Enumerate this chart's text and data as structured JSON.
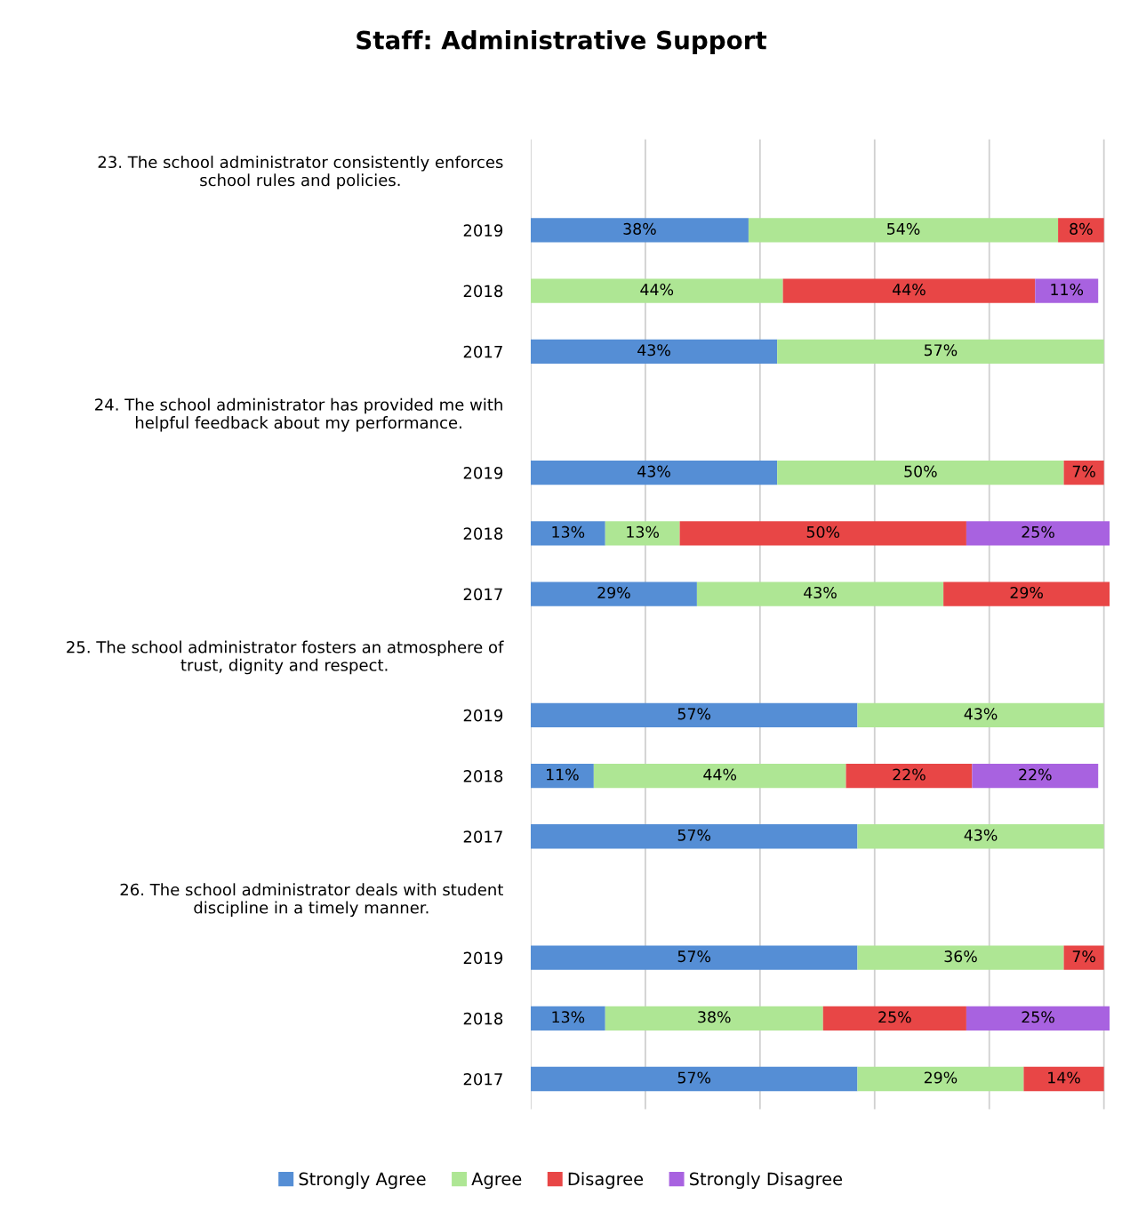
{
  "chart_data": {
    "type": "bar",
    "orientation": "horizontal",
    "stacked": true,
    "title": "Staff: Administrative Support",
    "categories": [
      "23. The school administrator consistently enforces\nschool rules and policies.",
      "2019",
      "2018",
      "2017",
      "24. The school administrator has provided me with\nhelpful feedback about my performance.",
      "2019",
      "2018",
      "2017",
      "25. The school administrator fosters an atmosphere of\ntrust, dignity and respect.",
      "2019",
      "2018",
      "2017",
      "26. The school administrator deals with student\ndiscipline in a timely manner.",
      "2019",
      "2018",
      "2017"
    ],
    "series": [
      {
        "name": "Strongly Agree",
        "color": "#558ed5",
        "values": [
          null,
          38,
          null,
          43,
          null,
          43,
          13,
          29,
          null,
          57,
          11,
          57,
          null,
          57,
          13,
          57
        ],
        "value_labels": [
          null,
          "38%",
          null,
          "43%",
          null,
          "43%",
          "13%",
          "29%",
          null,
          "57%",
          "11%",
          "57%",
          null,
          "57%",
          "13%",
          "57%"
        ]
      },
      {
        "name": "Agree",
        "color": "#aee694",
        "values": [
          null,
          54,
          44,
          57,
          null,
          50,
          13,
          43,
          null,
          43,
          44,
          43,
          null,
          36,
          38,
          29
        ],
        "value_labels": [
          null,
          "54%",
          "44%",
          "57%",
          null,
          "50%",
          "13%",
          "43%",
          null,
          "43%",
          "44%",
          "43%",
          null,
          "36%",
          "38%",
          "29%"
        ]
      },
      {
        "name": "Disagree",
        "color": "#e84646",
        "values": [
          null,
          8,
          44,
          null,
          null,
          7,
          50,
          29,
          null,
          null,
          22,
          null,
          null,
          7,
          25,
          14
        ],
        "value_labels": [
          null,
          "8%",
          "44%",
          null,
          null,
          "7%",
          "50%",
          "29%",
          null,
          null,
          "22%",
          null,
          null,
          "7%",
          "25%",
          "14%"
        ]
      },
      {
        "name": "Strongly Disagree",
        "color": "#a862e0",
        "values": [
          null,
          null,
          11,
          null,
          null,
          null,
          25,
          null,
          null,
          null,
          22,
          null,
          null,
          null,
          25,
          null
        ],
        "value_labels": [
          null,
          null,
          "11%",
          null,
          null,
          null,
          "25%",
          null,
          null,
          null,
          "22%",
          null,
          null,
          null,
          "25%",
          null
        ]
      }
    ],
    "tick_labels": "y",
    "grid": "x",
    "legend": "bottom"
  }
}
